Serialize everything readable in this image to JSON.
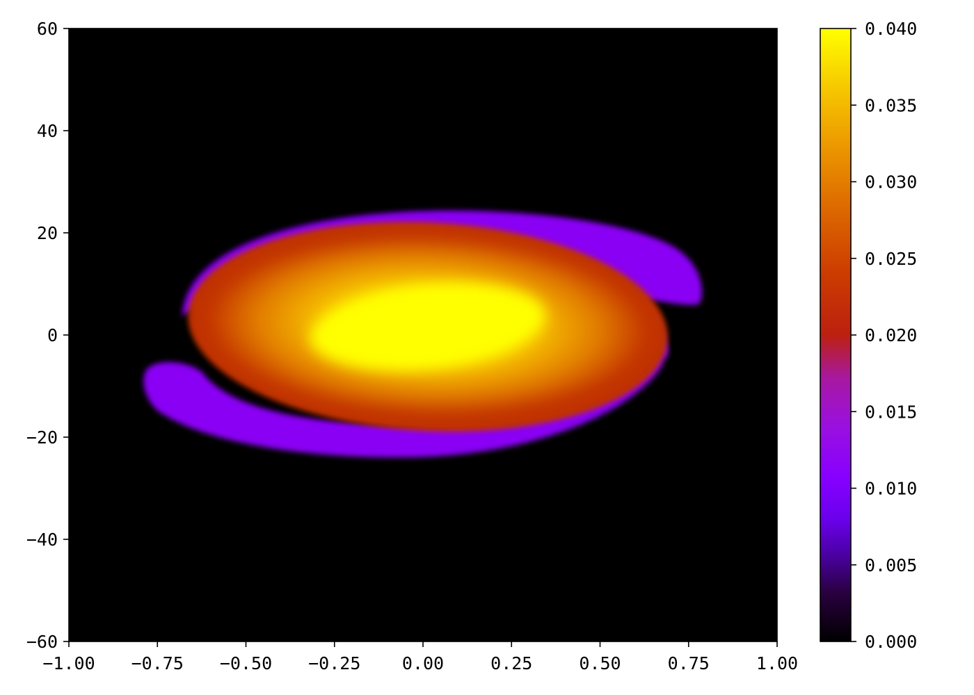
{
  "chart_data": {
    "type": "heatmap",
    "title": "",
    "xlabel": "",
    "ylabel": "",
    "xlim": [
      -1.0,
      1.0
    ],
    "ylim": [
      -60,
      60
    ],
    "grid": false,
    "x_ticks": [
      "−1.00",
      "−0.75",
      "−0.50",
      "−0.25",
      "0.00",
      "0.25",
      "0.50",
      "0.75",
      "1.00"
    ],
    "x_tick_values": [
      -1.0,
      -0.75,
      -0.5,
      -0.25,
      0.0,
      0.25,
      0.5,
      0.75,
      1.0
    ],
    "y_ticks": [
      "−60",
      "−40",
      "−20",
      "0",
      "20",
      "40",
      "60"
    ],
    "y_tick_values": [
      -60,
      -40,
      -20,
      0,
      20,
      40,
      60
    ],
    "colorbar": {
      "colormap": "gnuplot",
      "range": [
        0.0,
        0.04
      ],
      "ticks": [
        "0.000",
        "0.005",
        "0.010",
        "0.015",
        "0.020",
        "0.025",
        "0.030",
        "0.035",
        "0.040"
      ],
      "tick_values": [
        0.0,
        0.005,
        0.01,
        0.015,
        0.02,
        0.025,
        0.03,
        0.035,
        0.04
      ],
      "stops": [
        "#000000",
        "#3a0062",
        "#6c00e8",
        "#8a00ff",
        "#9c10d8",
        "#b0186a",
        "#c02a00",
        "#d85a00",
        "#ec9a00",
        "#ffff00"
      ]
    },
    "field": {
      "description_values": "peak value ~0.040 at center (x≈0.0, y≈0); orange core ~0.030; red ring ~0.021; purple spiral arms ~0.011; background 0.000",
      "core_center": [
        0.0,
        0.0
      ],
      "peak_value": 0.04,
      "outer_ring_value": 0.021,
      "arm_value": 0.011,
      "background_value": 0.0
    }
  }
}
